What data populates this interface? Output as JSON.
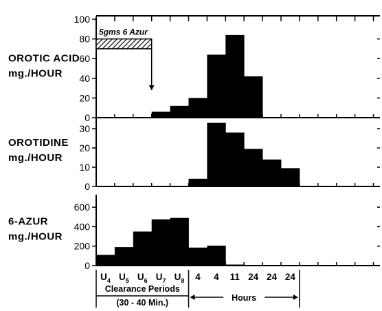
{
  "chart_data": {
    "type": "bar",
    "x_categories": [
      {
        "main": "U",
        "sub": "4"
      },
      {
        "main": "U",
        "sub": "5"
      },
      {
        "main": "U",
        "sub": "6"
      },
      {
        "main": "U",
        "sub": "7"
      },
      {
        "main": "U",
        "sub": "8"
      },
      {
        "main": "4",
        "sub": ""
      },
      {
        "main": "4",
        "sub": ""
      },
      {
        "main": "11",
        "sub": ""
      },
      {
        "main": "24",
        "sub": ""
      },
      {
        "main": "24",
        "sub": ""
      },
      {
        "main": "24",
        "sub": ""
      }
    ],
    "x_groups": [
      {
        "label_line1": "Clearance Periods",
        "label_line2": "(30 - 40 Min.)"
      },
      {
        "label_line1": "Hours",
        "label_line2": ""
      }
    ],
    "panels": [
      {
        "ylabel_line1": "OROTIC ACID",
        "ylabel_line2": "mg./HOUR",
        "ylim": [
          0,
          100
        ],
        "yticks": [
          0,
          20,
          40,
          60,
          80,
          100
        ],
        "values": [
          null,
          null,
          null,
          6,
          12,
          20,
          64,
          84,
          42,
          null,
          null
        ],
        "annotation": {
          "label": "5gms 6 Azur",
          "pattern": "hatched",
          "start_index": 0,
          "end_index": 3,
          "level": 75
        }
      },
      {
        "ylabel_line1": "OROTIDINE",
        "ylabel_line2": "mg./HOUR",
        "ylim": [
          0,
          35
        ],
        "yticks": [
          0,
          10,
          20,
          30
        ],
        "values": [
          null,
          null,
          null,
          null,
          null,
          4,
          33,
          28,
          19.5,
          14,
          9.5
        ]
      },
      {
        "ylabel_line1": "6-AZUR",
        "ylabel_line2": "mg./HOUR",
        "ylim": [
          0,
          700
        ],
        "yticks": [
          0,
          200,
          400,
          600
        ],
        "values": [
          110,
          190,
          350,
          475,
          490,
          185,
          205,
          10,
          null,
          null,
          null
        ]
      }
    ]
  }
}
